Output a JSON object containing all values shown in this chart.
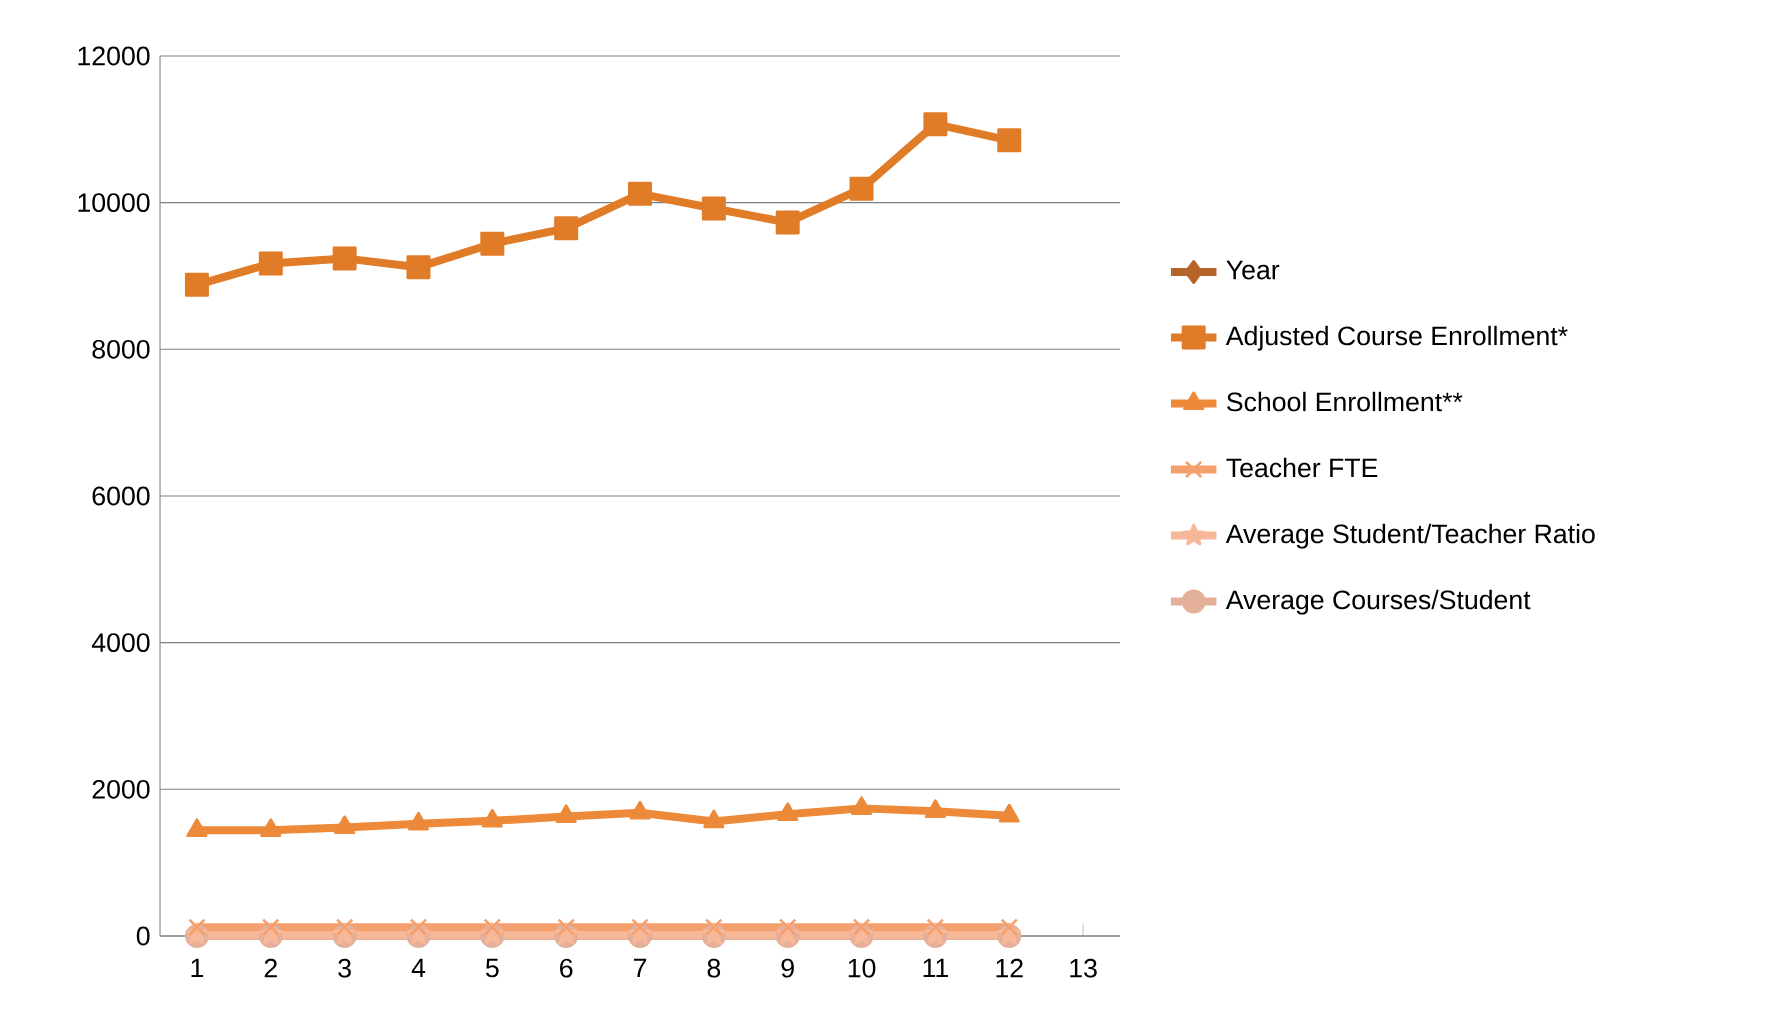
{
  "chart_data": {
    "type": "line",
    "categories": [
      "1",
      "2",
      "3",
      "4",
      "5",
      "6",
      "7",
      "8",
      "9",
      "10",
      "11",
      "12",
      "13"
    ],
    "series": [
      {
        "name": "Year",
        "color": "#b5652a",
        "marker": "diamond",
        "values": [
          null,
          null,
          null,
          null,
          null,
          null,
          null,
          null,
          null,
          null,
          null,
          null,
          null
        ]
      },
      {
        "name": "Adjusted Course Enrollment*",
        "color": "#e07b27",
        "marker": "square",
        "values": [
          8880,
          9170,
          9240,
          9120,
          9440,
          9650,
          10120,
          9920,
          9730,
          10190,
          11070,
          10850,
          null
        ]
      },
      {
        "name": "School Enrollment**",
        "color": "#ec8a3a",
        "marker": "triangle",
        "values": [
          1440,
          1440,
          1480,
          1530,
          1570,
          1630,
          1680,
          1560,
          1660,
          1740,
          1700,
          1640,
          null
        ]
      },
      {
        "name": "Teacher FTE",
        "color": "#f4a06e",
        "marker": "cross",
        "values": [
          120,
          120,
          120,
          120,
          120,
          120,
          120,
          120,
          120,
          120,
          120,
          120,
          null
        ]
      },
      {
        "name": "Average Student/Teacher Ratio",
        "color": "#f6b898",
        "marker": "star",
        "values": [
          20,
          20,
          20,
          20,
          20,
          20,
          20,
          20,
          20,
          20,
          20,
          20,
          null
        ]
      },
      {
        "name": "Average Courses/Student",
        "color": "#e4b09a",
        "marker": "circle",
        "values": [
          0,
          0,
          0,
          0,
          0,
          0,
          0,
          0,
          0,
          0,
          0,
          0,
          null
        ]
      }
    ],
    "ylim": [
      0,
      12000
    ],
    "yticks": [
      0,
      2000,
      4000,
      6000,
      8000,
      10000,
      12000
    ],
    "grid": "y",
    "legend": "right",
    "line_style": "solid"
  }
}
